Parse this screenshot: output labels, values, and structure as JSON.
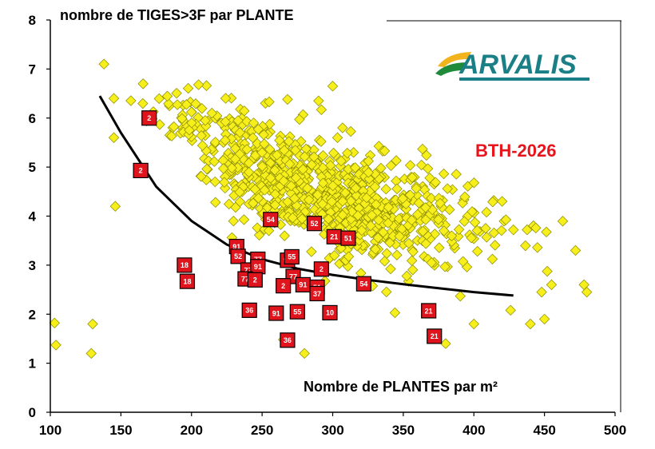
{
  "chart_data": {
    "type": "scatter",
    "title": "nombre de TIGES>3F par PLANTE",
    "xlabel": "Nombre de PLANTES par m²",
    "ylabel": "",
    "xlim": [
      100,
      500
    ],
    "ylim": [
      0,
      8
    ],
    "x_ticks": [
      "100",
      "150",
      "200",
      "250",
      "300",
      "350",
      "400",
      "450",
      "500"
    ],
    "y_ticks": [
      "0",
      "1",
      "2",
      "3",
      "4",
      "5",
      "6",
      "7",
      "8"
    ],
    "grid": false,
    "annotation": "BTH-2026",
    "annotation_color": "#e8141c",
    "logo_text": "ARVALIS",
    "colors": {
      "background_points": "#f6ef1b",
      "background_points_border": "#8a8a00",
      "highlight_points": "#e0141c",
      "trend_line": "#000000",
      "logo_text": "#1a7f86",
      "logo_swoosh_yellow": "#f2b31d",
      "logo_swoosh_green": "#1f8a3a"
    },
    "series_highlight": [
      {
        "x": 170,
        "y": 6.0,
        "label": "2"
      },
      {
        "x": 164,
        "y": 4.93,
        "label": "2"
      },
      {
        "x": 195,
        "y": 3.0,
        "label": "18"
      },
      {
        "x": 197,
        "y": 2.67,
        "label": "18"
      },
      {
        "x": 232,
        "y": 3.38,
        "label": "91"
      },
      {
        "x": 233,
        "y": 3.18,
        "label": "52"
      },
      {
        "x": 240,
        "y": 2.9,
        "label": "77"
      },
      {
        "x": 247,
        "y": 3.12,
        "label": "77"
      },
      {
        "x": 247,
        "y": 2.97,
        "label": "91"
      },
      {
        "x": 238,
        "y": 2.72,
        "label": "77"
      },
      {
        "x": 245,
        "y": 2.7,
        "label": "2"
      },
      {
        "x": 256,
        "y": 3.93,
        "label": "54"
      },
      {
        "x": 268,
        "y": 3.1,
        "label": "91"
      },
      {
        "x": 271,
        "y": 3.17,
        "label": "55"
      },
      {
        "x": 272,
        "y": 2.77,
        "label": "77"
      },
      {
        "x": 265,
        "y": 2.58,
        "label": "2"
      },
      {
        "x": 279,
        "y": 2.6,
        "label": "91"
      },
      {
        "x": 287,
        "y": 3.85,
        "label": "52"
      },
      {
        "x": 289,
        "y": 2.55,
        "label": "51"
      },
      {
        "x": 289,
        "y": 2.42,
        "label": "37"
      },
      {
        "x": 292,
        "y": 2.92,
        "label": "2"
      },
      {
        "x": 301,
        "y": 3.58,
        "label": "21"
      },
      {
        "x": 311,
        "y": 3.55,
        "label": "51"
      },
      {
        "x": 241,
        "y": 2.08,
        "label": "36"
      },
      {
        "x": 260,
        "y": 2.02,
        "label": "91"
      },
      {
        "x": 275,
        "y": 2.05,
        "label": "55"
      },
      {
        "x": 298,
        "y": 2.03,
        "label": "10"
      },
      {
        "x": 322,
        "y": 2.62,
        "label": "54"
      },
      {
        "x": 268,
        "y": 1.47,
        "label": "36"
      },
      {
        "x": 368,
        "y": 2.07,
        "label": "21"
      },
      {
        "x": 372,
        "y": 1.55,
        "label": "21"
      }
    ],
    "trend_line": {
      "x": [
        135,
        150,
        175,
        200,
        225,
        250,
        275,
        300,
        325,
        350,
        375,
        400,
        428
      ],
      "y": [
        6.45,
        5.7,
        4.6,
        3.9,
        3.42,
        3.12,
        2.93,
        2.8,
        2.7,
        2.61,
        2.53,
        2.45,
        2.38
      ]
    },
    "series_background_note": "approx. 900 points, values generated to match cloud density"
  }
}
